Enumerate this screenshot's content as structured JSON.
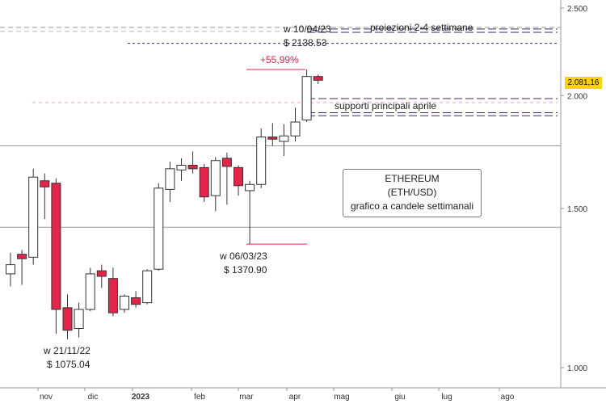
{
  "chart_data": {
    "type": "candlestick",
    "title": "ETHEREUM",
    "subtitle": "(ETH/USD)",
    "caption": "grafico a candele settimanali",
    "y_scale": "log",
    "ylim": [
      950,
      2550
    ],
    "y_ticks": [
      "2.500",
      "2.000",
      "1.500",
      "1.000"
    ],
    "y_tick_values": [
      2500,
      2000,
      1500,
      1000
    ],
    "x_ticks": [
      "nov",
      "dic",
      "2023",
      "feb",
      "mar",
      "apr",
      "mag",
      "giu",
      "lug",
      "ago"
    ],
    "last_price": "2.081,16",
    "colors": {
      "up": "#ffffff",
      "down": "#e8234a",
      "wick": "#333333",
      "last_tag": "#ffd400"
    },
    "candles": [
      {
        "o": 1270,
        "h": 1340,
        "l": 1230,
        "c": 1300
      },
      {
        "o": 1335,
        "h": 1350,
        "l": 1235,
        "c": 1320
      },
      {
        "o": 1325,
        "h": 1660,
        "l": 1300,
        "c": 1625
      },
      {
        "o": 1610,
        "h": 1640,
        "l": 1460,
        "c": 1585
      },
      {
        "o": 1600,
        "h": 1620,
        "l": 1090,
        "c": 1160
      },
      {
        "o": 1165,
        "h": 1205,
        "l": 1075,
        "c": 1100
      },
      {
        "o": 1105,
        "h": 1180,
        "l": 1080,
        "c": 1160
      },
      {
        "o": 1160,
        "h": 1290,
        "l": 1155,
        "c": 1270
      },
      {
        "o": 1280,
        "h": 1300,
        "l": 1225,
        "c": 1262
      },
      {
        "o": 1255,
        "h": 1290,
        "l": 1140,
        "c": 1150
      },
      {
        "o": 1160,
        "h": 1205,
        "l": 1150,
        "c": 1200
      },
      {
        "o": 1195,
        "h": 1215,
        "l": 1165,
        "c": 1175
      },
      {
        "o": 1180,
        "h": 1285,
        "l": 1175,
        "c": 1280
      },
      {
        "o": 1285,
        "h": 1600,
        "l": 1280,
        "c": 1580
      },
      {
        "o": 1575,
        "h": 1690,
        "l": 1525,
        "c": 1660
      },
      {
        "o": 1655,
        "h": 1705,
        "l": 1610,
        "c": 1675
      },
      {
        "o": 1675,
        "h": 1735,
        "l": 1640,
        "c": 1660
      },
      {
        "o": 1665,
        "h": 1680,
        "l": 1525,
        "c": 1545
      },
      {
        "o": 1550,
        "h": 1710,
        "l": 1490,
        "c": 1695
      },
      {
        "o": 1705,
        "h": 1730,
        "l": 1515,
        "c": 1670
      },
      {
        "o": 1665,
        "h": 1675,
        "l": 1550,
        "c": 1590
      },
      {
        "o": 1570,
        "h": 1610,
        "l": 1370,
        "c": 1595
      },
      {
        "o": 1595,
        "h": 1840,
        "l": 1580,
        "c": 1800
      },
      {
        "o": 1800,
        "h": 1865,
        "l": 1760,
        "c": 1790
      },
      {
        "o": 1780,
        "h": 1860,
        "l": 1715,
        "c": 1805
      },
      {
        "o": 1805,
        "h": 1940,
        "l": 1780,
        "c": 1870
      },
      {
        "o": 1880,
        "h": 2138,
        "l": 1870,
        "c": 2100
      },
      {
        "o": 2100,
        "h": 2110,
        "l": 2060,
        "c": 2080
      }
    ],
    "annotations": {
      "low_label_1": "w 21/11/22",
      "low_value_1": "$ 1075.04",
      "low_label_2": "w 06/03/23",
      "low_value_2": "$ 1370.90",
      "high_label": "w 10/04/23",
      "high_value": "$ 2138.53",
      "gain": "+55,99%",
      "projections": "proiezioni 2-4 settimane",
      "supports": "supporti principali aprile"
    },
    "levels": {
      "top_dashed": 2380,
      "prev_high_dotted": 2285,
      "projection_lines": [
        2370,
        2350
      ],
      "pink_dashed": 1965,
      "support_lines": [
        1985,
        1915,
        1900
      ],
      "horizontal_solid": [
        1760,
        1430
      ],
      "gain_line": 2138,
      "low_line": 1370
    }
  }
}
